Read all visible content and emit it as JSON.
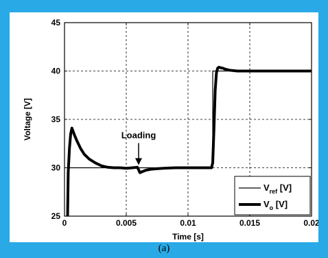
{
  "caption": "(a)",
  "chart_data": {
    "type": "line",
    "title": "",
    "xlabel": "Time [s]",
    "ylabel": "Voltage [V]",
    "xlim": [
      0,
      0.02
    ],
    "ylim": [
      25,
      45
    ],
    "xticks": [
      0,
      0.005,
      0.01,
      0.015,
      0.02
    ],
    "xtick_labels": [
      "0",
      "0.005",
      "0.01",
      "0.015",
      "0.02"
    ],
    "yticks": [
      25,
      30,
      35,
      40,
      45
    ],
    "ytick_labels": [
      "25",
      "30",
      "35",
      "40",
      "45"
    ],
    "grid": true,
    "legend_position": "bottom-right",
    "annotation": {
      "text": "Loading",
      "x": 0.006,
      "y": 30
    },
    "series": [
      {
        "name_main": "V",
        "name_sub": "ref",
        "name_unit": " [V]",
        "style": "thin",
        "color": "#000000",
        "x": [
          0.00025,
          0.00025,
          0.012,
          0.012,
          0.02
        ],
        "y": [
          25,
          30,
          30,
          40,
          40
        ]
      },
      {
        "name_main": "V",
        "name_sub": "o",
        "name_unit": " [V]",
        "style": "thick",
        "color": "#000000",
        "x": [
          0.00025,
          0.0003,
          0.0004,
          0.0005,
          0.0006,
          0.0008,
          0.001,
          0.0013,
          0.0016,
          0.002,
          0.0025,
          0.003,
          0.0035,
          0.004,
          0.0045,
          0.005,
          0.0055,
          0.0059,
          0.006,
          0.0061,
          0.0063,
          0.0066,
          0.007,
          0.0075,
          0.008,
          0.009,
          0.01,
          0.011,
          0.0118,
          0.0119,
          0.012,
          0.0121,
          0.0122,
          0.0123,
          0.0124,
          0.0125,
          0.0126,
          0.0128,
          0.013,
          0.0133,
          0.0136,
          0.014,
          0.015,
          0.016,
          0.017,
          0.018,
          0.019,
          0.02
        ],
        "y": [
          25,
          29.5,
          32,
          33.5,
          34.1,
          33.4,
          32.8,
          32.0,
          31.4,
          30.9,
          30.5,
          30.2,
          30.05,
          30.0,
          30.0,
          29.95,
          30.0,
          30.05,
          29.8,
          29.5,
          29.6,
          29.75,
          29.85,
          29.9,
          29.95,
          30.0,
          30.0,
          30.0,
          30.0,
          30.0,
          30.5,
          34.0,
          38.0,
          39.8,
          40.3,
          40.4,
          40.35,
          40.3,
          40.2,
          40.1,
          40.05,
          40.0,
          40.0,
          40.0,
          40.0,
          40.0,
          40.0,
          40.0
        ]
      }
    ]
  }
}
